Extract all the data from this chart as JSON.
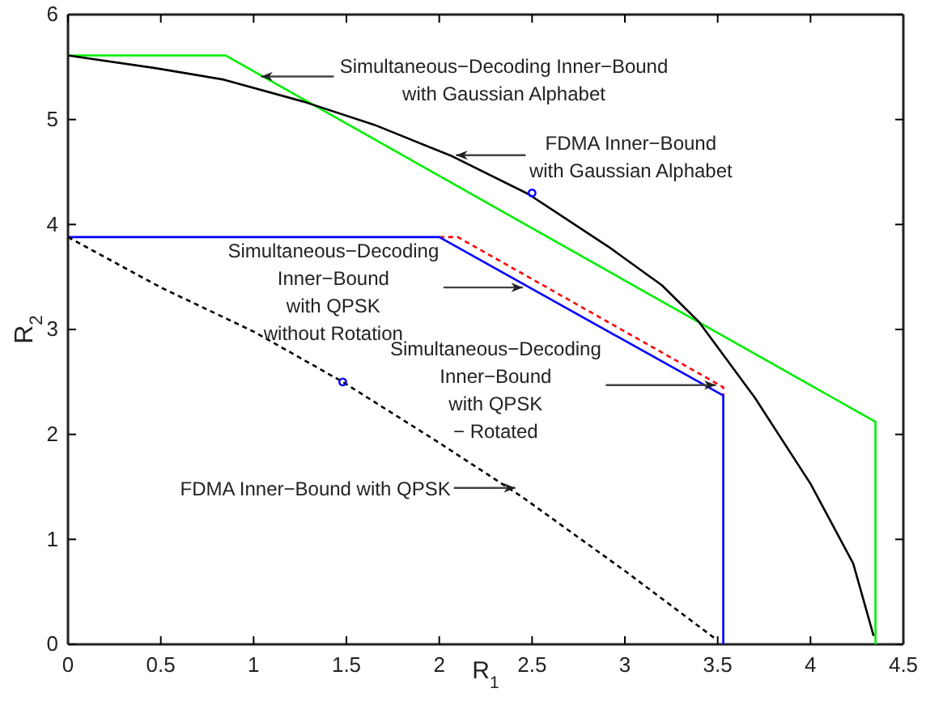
{
  "chart_data": {
    "type": "line",
    "xlabel": "R$_{1}$",
    "ylabel": "R$_{2}$",
    "xlim": [
      0,
      4.5
    ],
    "ylim": [
      0,
      6
    ],
    "xticks": [
      0,
      0.5,
      1,
      1.5,
      2,
      2.5,
      3,
      3.5,
      4,
      4.5
    ],
    "yticks": [
      0,
      1,
      2,
      3,
      4,
      5,
      6
    ],
    "grid": false,
    "legend": false,
    "series": [
      {
        "color": "#00ee00",
        "line_style": "solid",
        "x": [
          0,
          0.85,
          4.35,
          4.35
        ],
        "values": [
          5.61,
          5.61,
          2.12,
          0
        ]
      },
      {
        "color": "#000000",
        "line_style": "solid",
        "x": [
          0,
          0.47,
          0.84,
          1.27,
          1.65,
          2.07,
          2.48,
          2.91,
          3.2,
          3.4,
          3.7,
          4.0,
          4.23,
          4.34
        ],
        "values": [
          5.61,
          5.49,
          5.38,
          5.17,
          4.95,
          4.65,
          4.29,
          3.79,
          3.42,
          3.07,
          2.35,
          1.53,
          0.77,
          0.08
        ]
      },
      {
        "color": "#ff0000",
        "line_style": "dashed",
        "x": [
          2.0,
          2.1,
          3.53,
          3.53
        ],
        "values": [
          3.88,
          3.88,
          2.45,
          2.37
        ]
      },
      {
        "color": "#0000ff",
        "line_style": "solid",
        "x": [
          0,
          2.0,
          3.53,
          3.53
        ],
        "values": [
          3.88,
          3.88,
          2.37,
          0
        ]
      },
      {
        "color": "#000000",
        "line_style": "dashed",
        "x": [
          0,
          0.5,
          1.0,
          1.48,
          2.0,
          2.45,
          3.0,
          3.49
        ],
        "values": [
          3.88,
          3.4,
          2.98,
          2.5,
          1.92,
          1.4,
          0.7,
          0.05
        ]
      },
      {
        "type": "scatter",
        "color": "#0000ff",
        "marker": "circle",
        "x": [
          1.48,
          2.5
        ],
        "values": [
          2.5,
          4.3
        ]
      }
    ],
    "annotations": [
      {
        "text": "Simultaneous−Decoding Inner−Bound\nwith Gaussian Alphabet",
        "x": 1.04,
        "y": 5.41
      },
      {
        "text": "FDMA Inner−Bound\nwith Gaussian Alphabet",
        "x": 2.09,
        "y": 4.66
      },
      {
        "text": "Simultaneous−Decoding\nInner−Bound\nwith QPSK\nwithout Rotation",
        "x": 2.45,
        "y": 3.4
      },
      {
        "text": "Simultaneous−Decoding\nInner−Bound\nwith QPSK\n− Rotated",
        "x": 3.49,
        "y": 2.47
      },
      {
        "text": "FDMA Inner−Bound with QPSK",
        "x": 2.41,
        "y": 1.49
      }
    ]
  }
}
